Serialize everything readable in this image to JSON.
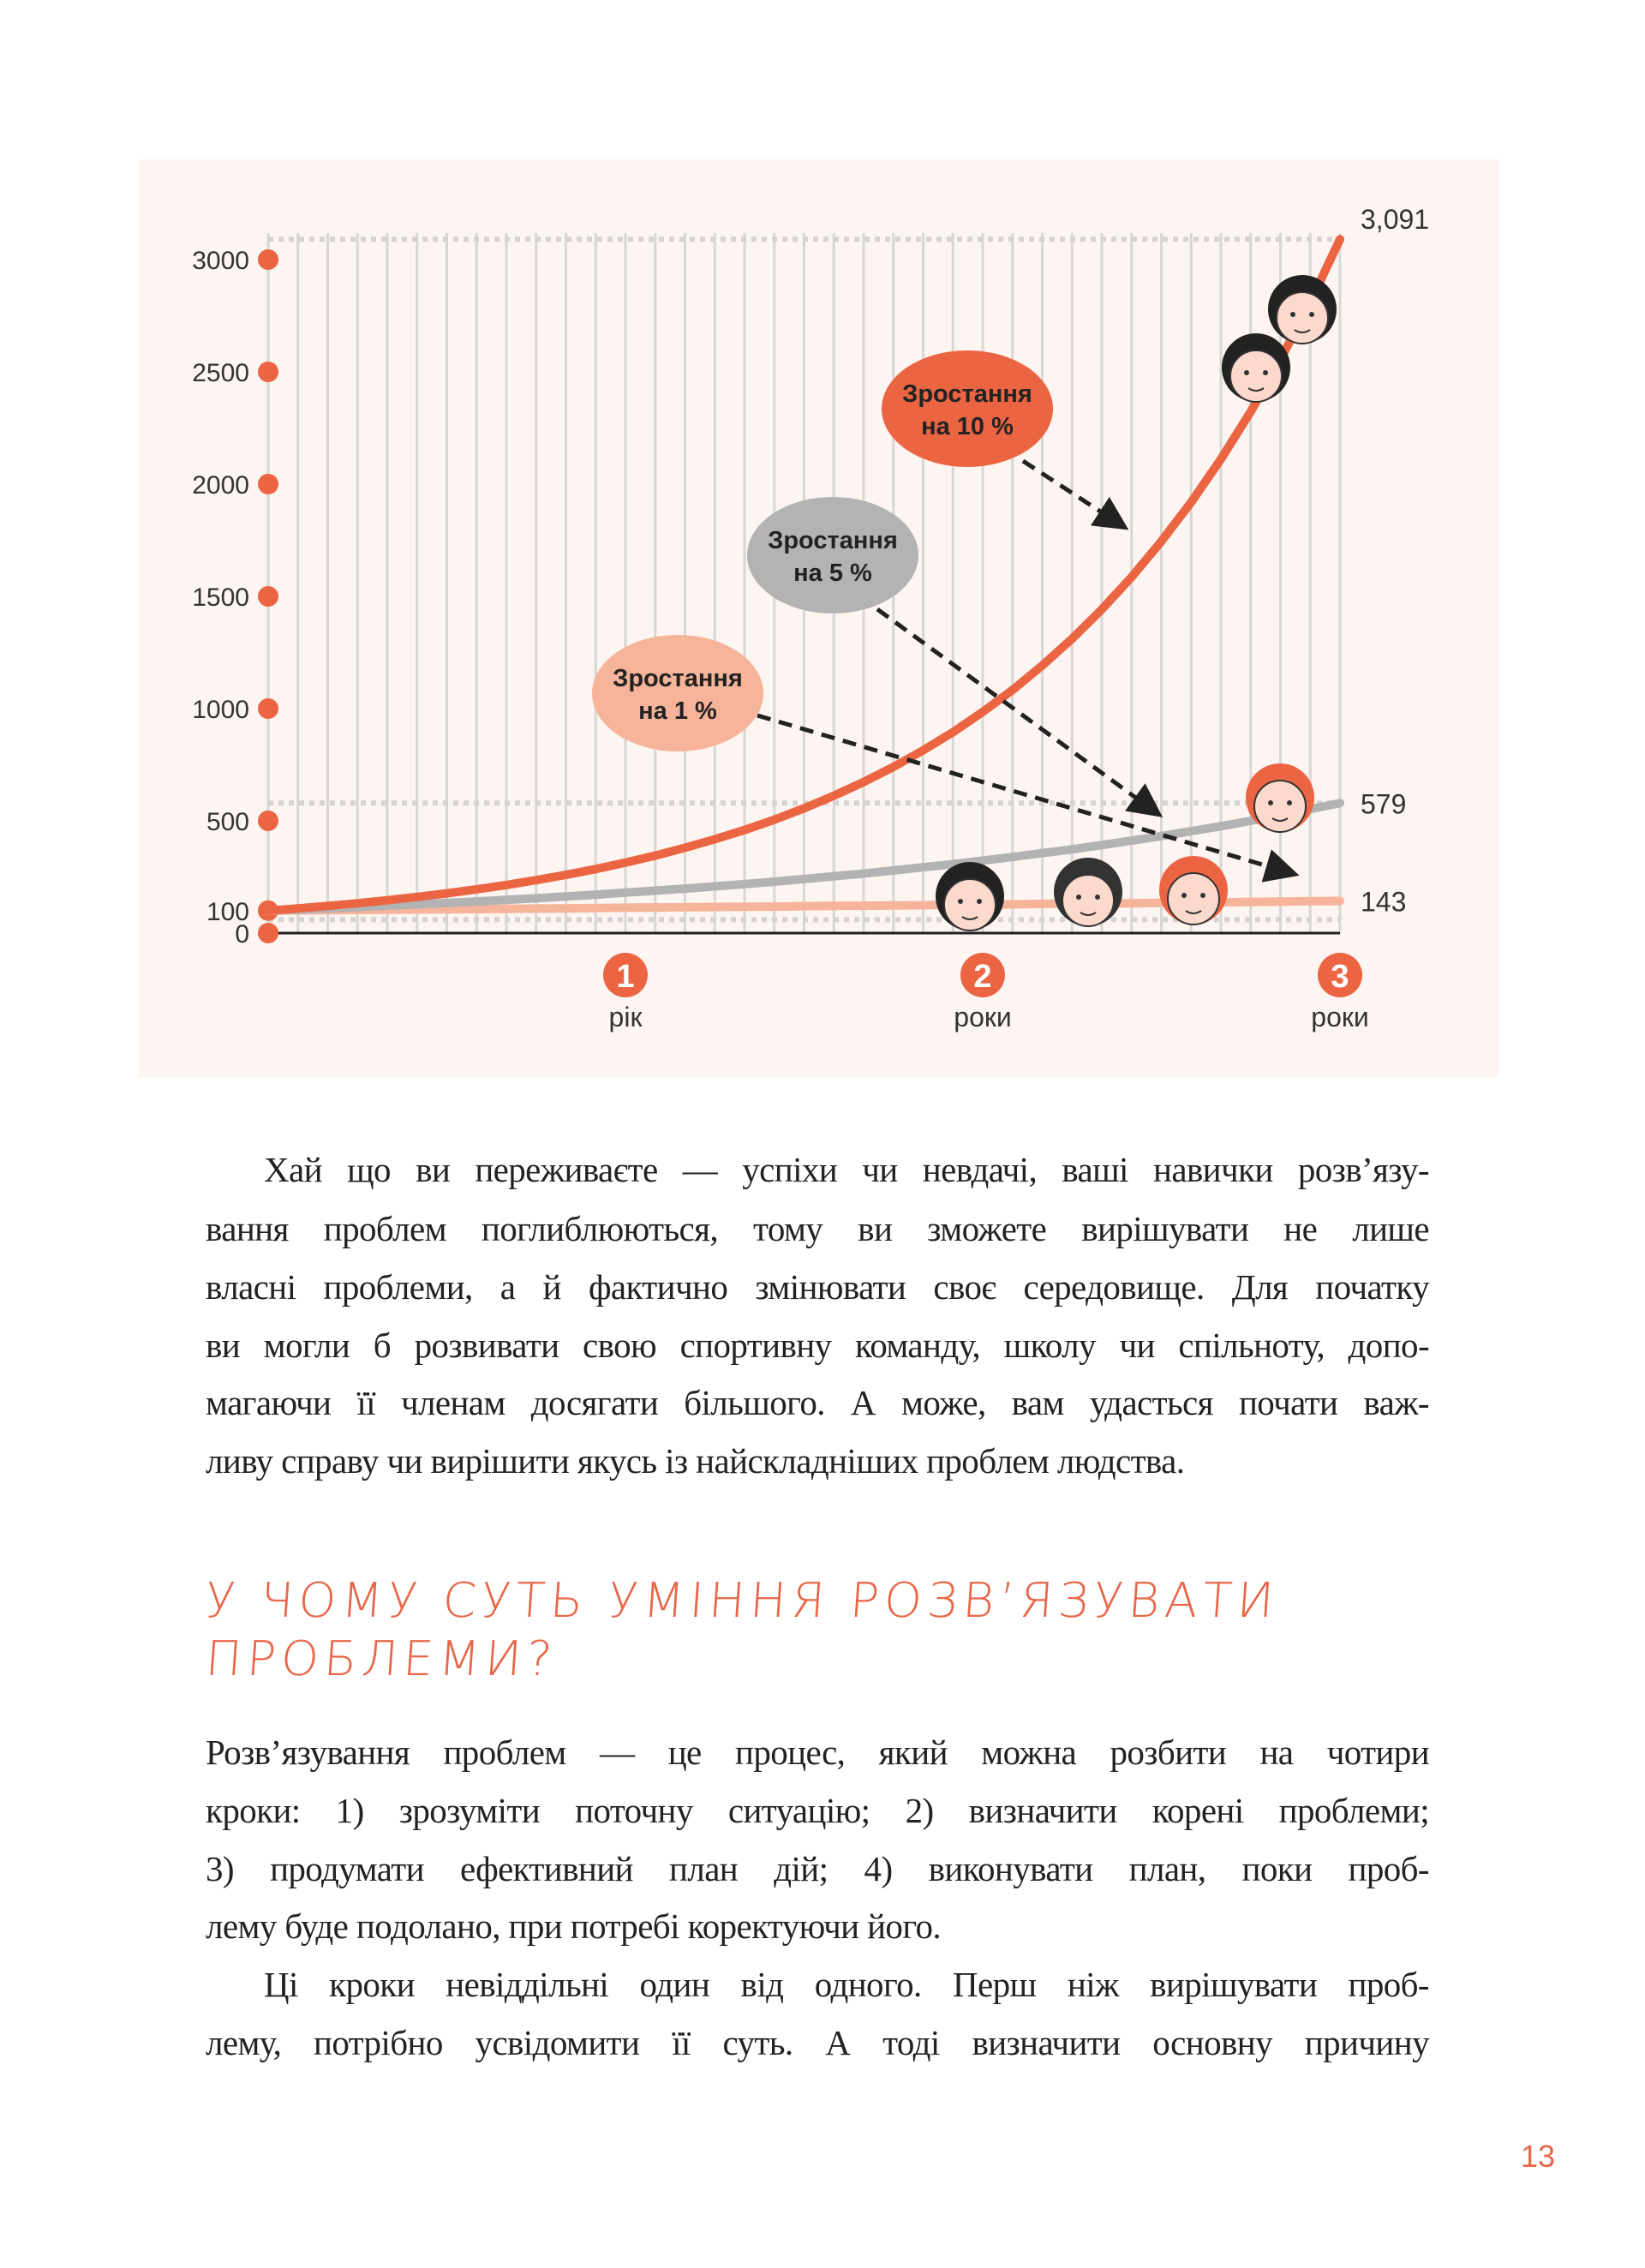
{
  "colors": {
    "background": "#fdf5f1",
    "growth_10": "#ec6543",
    "growth_5": "#b3b3b3",
    "growth_1": "#f6b49a",
    "accent": "#e8674a"
  },
  "chart_data": {
    "type": "line",
    "title": "",
    "xlabel": "",
    "ylabel": "",
    "ylim": [
      0,
      3091
    ],
    "y_ticks": [
      "3000",
      "2500",
      "2000",
      "1500",
      "1000",
      "500",
      "100",
      "0"
    ],
    "y_tick_values": [
      3000,
      2500,
      2000,
      1500,
      1000,
      500,
      100,
      0
    ],
    "x_markers": [
      {
        "value": 1,
        "number": "1",
        "label": "рік"
      },
      {
        "value": 2,
        "number": "2",
        "label": "роки"
      },
      {
        "value": 3,
        "number": "3",
        "label": "роки"
      }
    ],
    "x": [
      0,
      1,
      2,
      3,
      4,
      5,
      6,
      7,
      8,
      9,
      10,
      11,
      12,
      13,
      14,
      15,
      16,
      17,
      18,
      19,
      20,
      21,
      22,
      23,
      24,
      25,
      26,
      27,
      28,
      29,
      30,
      31,
      32,
      33,
      34,
      35,
      36
    ],
    "grid": "vertical",
    "series": [
      {
        "name": "Зростання на 10 %",
        "line1": "Зростання",
        "line2": "на 10 %",
        "end_label": "3,091",
        "color": "#ec6543",
        "values": [
          100,
          110,
          121,
          133,
          146,
          161,
          177,
          195,
          214,
          236,
          259,
          285,
          314,
          345,
          380,
          418,
          459,
          505,
          556,
          612,
          673,
          740,
          814,
          895,
          985,
          1083,
          1192,
          1311,
          1442,
          1586,
          1745,
          1919,
          2111,
          2323,
          2555,
          2810,
          3091
        ]
      },
      {
        "name": "Зростання на 5 %",
        "line1": "Зростання",
        "line2": "на 5 %",
        "end_label": "579",
        "color": "#b3b3b3",
        "values": [
          100,
          105,
          110,
          116,
          122,
          128,
          134,
          141,
          148,
          155,
          163,
          171,
          180,
          189,
          198,
          208,
          218,
          229,
          241,
          253,
          265,
          279,
          293,
          307,
          323,
          339,
          356,
          373,
          392,
          412,
          432,
          454,
          476,
          500,
          525,
          552,
          579
        ]
      },
      {
        "name": "Зростання на 1 %",
        "line1": "Зростання",
        "line2": "на 1 %",
        "end_label": "143",
        "color": "#f6b49a",
        "values": [
          100,
          101,
          102,
          103,
          104,
          105,
          106,
          107,
          108,
          109,
          110,
          112,
          113,
          114,
          115,
          116,
          117,
          118,
          120,
          121,
          122,
          123,
          124,
          126,
          127,
          128,
          130,
          131,
          132,
          133,
          135,
          136,
          137,
          139,
          140,
          142,
          143
        ]
      }
    ]
  },
  "paragraph1": [
    "Хай що ви переживаєте — успіхи чи невдачі, ваші навички розв’язу-",
    "вання проблем поглиблюються, тому ви зможете вирішувати не лише",
    "власні проблеми, а й фактично змінювати своє середовище. Для початку",
    "ви могли б розвивати свою спортивну команду, школу чи спільноту, допо-",
    "магаючи її членам досягати більшого. А може, вам удасться почати важ-",
    "ливу справу чи вирішити якусь із найскладніших проблем людства."
  ],
  "heading": [
    "У ЧОМУ СУТЬ УМІННЯ РОЗВ’ЯЗУВАТИ",
    "ПРОБЛЕМИ?"
  ],
  "paragraph2": [
    "Розв’язування проблем — це процес, який можна розбити на чотири",
    "кроки: 1) зрозуміти поточну ситуацію; 2) визначити корені проблеми;",
    "3) продумати ефективний план дій; 4) виконувати план, поки проб-",
    "лему буде подолано, при потребі коректуючи його."
  ],
  "paragraph3": [
    "Ці кроки невіддільні один від одного. Перш ніж вирішувати проб-",
    "лему, потрібно усвідомити її суть. А тоді визначити основну причину"
  ],
  "page_number": "13"
}
